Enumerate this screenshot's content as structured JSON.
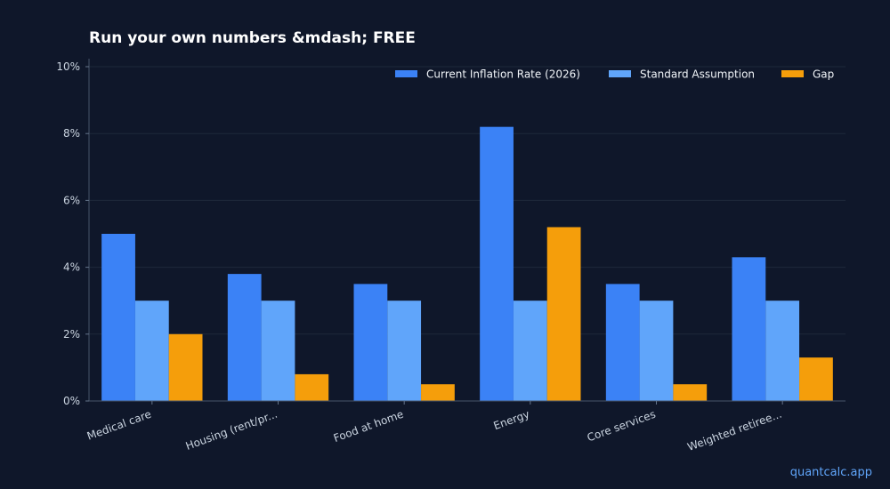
{
  "chart_data": {
    "type": "bar",
    "title": "Run your own numbers &mdash; FREE",
    "categories": [
      "Medical care",
      "Housing (rent/pr...",
      "Food at home",
      "Energy",
      "Core services",
      "Weighted retiree..."
    ],
    "series": [
      {
        "name": "Current Inflation Rate (2026)",
        "values": [
          5.0,
          3.8,
          3.5,
          8.2,
          3.5,
          4.3
        ],
        "color": "#3b82f6"
      },
      {
        "name": "Standard Assumption",
        "values": [
          3.0,
          3.0,
          3.0,
          3.0,
          3.0,
          3.0
        ],
        "color": "#60a5fa"
      },
      {
        "name": "Gap",
        "values": [
          2.0,
          0.8,
          0.5,
          5.2,
          0.5,
          1.3
        ],
        "color": "#f59e0b"
      }
    ],
    "ylim": [
      0,
      10
    ],
    "yticks": [
      "0%",
      "2%",
      "4%",
      "6%",
      "8%",
      "10%"
    ],
    "grid": true,
    "legend_position": "top-right"
  },
  "watermark": "quantcalc.app"
}
